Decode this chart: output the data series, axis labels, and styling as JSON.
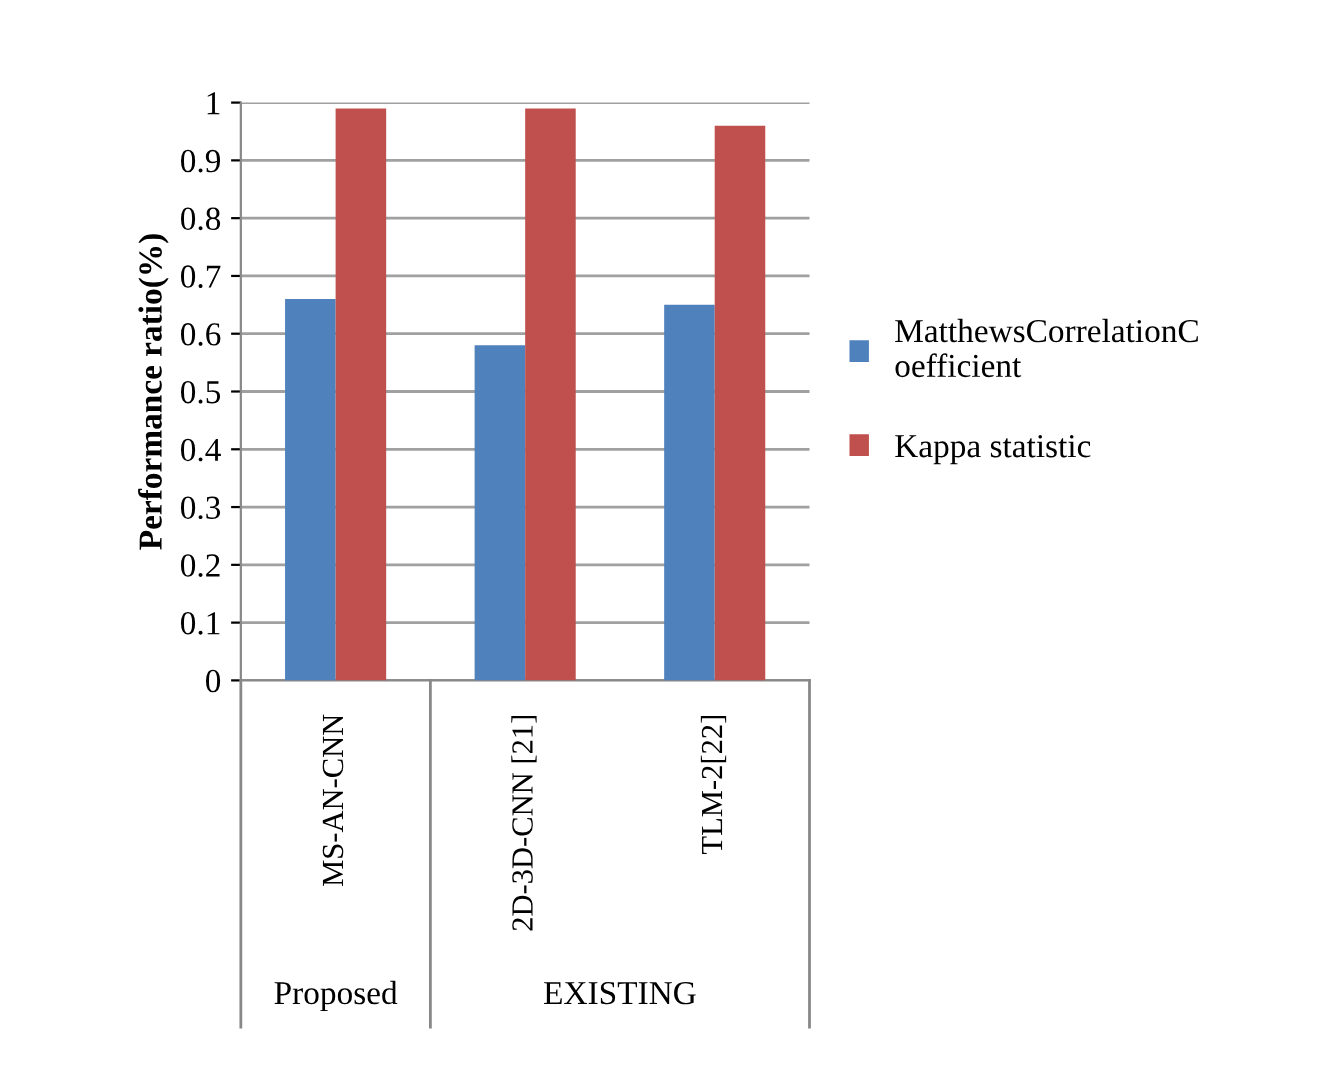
{
  "chart_data": {
    "type": "bar",
    "ylabel": "Performance ratio(%)",
    "categories": [
      "MS-AN-CNN",
      "2D-3D-CNN [21]",
      "TLM-2[22]"
    ],
    "series": [
      {
        "name": "MatthewsCorrelationCoefficient",
        "color": "#4f81bd",
        "values": [
          0.66,
          0.58,
          0.65
        ]
      },
      {
        "name": "Kappa statistic",
        "color": "#c0504d",
        "values": [
          0.99,
          0.99,
          0.96
        ]
      }
    ],
    "ylim": [
      0,
      1
    ],
    "yticks": [
      0,
      0.1,
      0.2,
      0.3,
      0.4,
      0.5,
      0.6,
      0.7,
      0.8,
      0.9,
      1
    ],
    "grid": "y",
    "legend": "right",
    "annotations": [
      "Proposed",
      "EXISTING"
    ]
  }
}
